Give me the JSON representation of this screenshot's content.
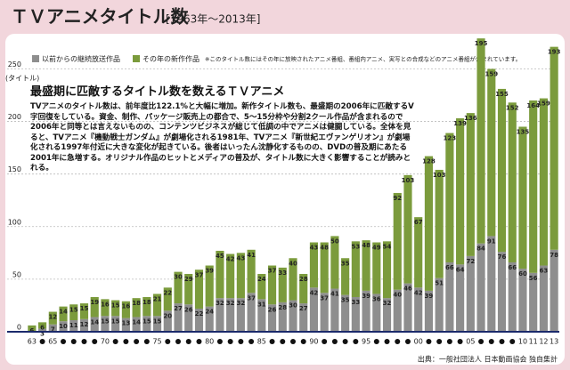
{
  "chart_data": {
    "type": "bar",
    "title": "ＴＶアニメタイトル数",
    "subtitle": "[1963年～2013年]",
    "y_label": "(タイトル)",
    "note": "※このタイトル数にはその年に放映されたアニメ番組、番組内アニメ、実写との合成などのアニメ番組が含まれています。",
    "annotation_title": "最盛期に匹敵するタイトル数を数えるＴＶアニメ",
    "annotation_text": "TVアニメのタイトル数は、前年度比122.1%と大幅に増加。新作タイトル数も、最盛期の2006年に匹敵するV字回復をしている。資金、制作、パッケージ販売上の都合で、5～15分枠や分割2クール作品が含まれるので2006年と同等とは言えないものの、コンテンツビジネスが総じて低調の中でアニメは健闘している。全体を見ると、TVアニメ『機動戦士ガンダム』が劇場化される1981年、TVアニメ『新世紀エヴァンゲリオン』が劇場化される1997年付近に大きな変化が起きている。後者はいったん沈静化するものの、DVDの普及期にあたる2001年に急増する。オリジナル作品のヒットとメディアの普及が、タイトル数に大きく影響することが読みとれる。",
    "source": "出典：一般社団法人 日本動画協会 独自集計",
    "categories": [
      "63",
      null,
      "65",
      null,
      null,
      null,
      null,
      "70",
      null,
      null,
      null,
      null,
      "75",
      null,
      null,
      null,
      null,
      "80",
      null,
      null,
      null,
      null,
      "85",
      null,
      null,
      null,
      null,
      "90",
      null,
      null,
      null,
      null,
      "95",
      null,
      null,
      null,
      null,
      "00",
      null,
      null,
      null,
      null,
      "05",
      null,
      null,
      null,
      null,
      "10",
      "11",
      "12",
      "13"
    ],
    "series": [
      {
        "name": "以前からの継続放送作品",
        "color": "#8e8e8e",
        "values": [
          0,
          3,
          7,
          10,
          11,
          12,
          14,
          15,
          15,
          13,
          14,
          15,
          15,
          20,
          27,
          26,
          22,
          24,
          32,
          32,
          32,
          37,
          31,
          26,
          28,
          30,
          27,
          42,
          37,
          41,
          35,
          33,
          39,
          36,
          32,
          40,
          46,
          42,
          39,
          51,
          66,
          64,
          72,
          84,
          91,
          76,
          66,
          60,
          56,
          63,
          78
        ]
      },
      {
        "name": "その年の新作作品",
        "color": "#7b9b3c",
        "values": [
          6,
          6,
          12,
          14,
          15,
          15,
          19,
          16,
          15,
          16,
          18,
          18,
          21,
          22,
          30,
          29,
          37,
          39,
          45,
          42,
          43,
          41,
          24,
          37,
          33,
          40,
          28,
          43,
          48,
          50,
          35,
          53,
          48,
          49,
          54,
          92,
          103,
          67,
          128,
          103,
          123,
          139,
          136,
          195,
          159,
          155,
          152,
          135,
          164,
          159,
          193
        ]
      }
    ],
    "ylim": [
      0,
      280
    ],
    "yticks": [
      0,
      50,
      100,
      150,
      200,
      250
    ],
    "grid": true
  }
}
